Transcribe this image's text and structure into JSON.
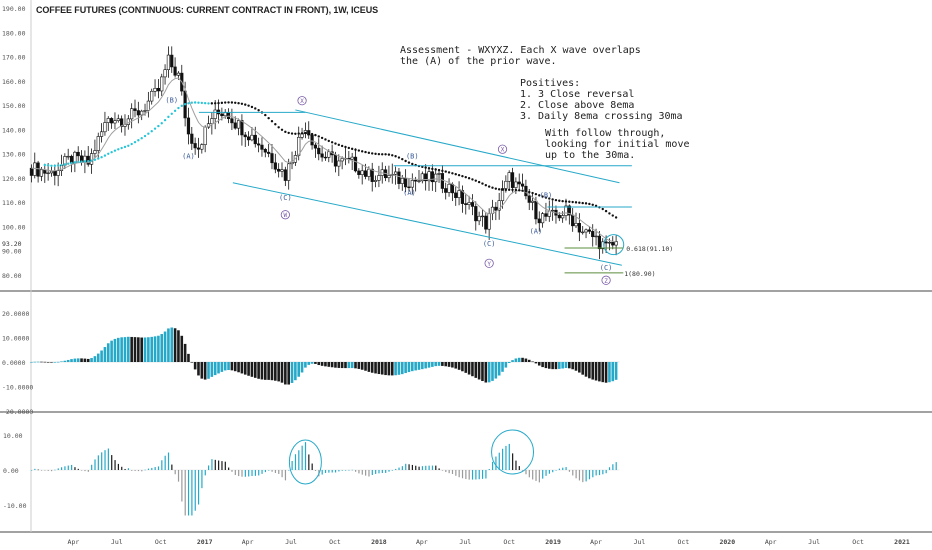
{
  "title": "COFFEE FUTURES (CONTINUOUS: CURRENT CONTRACT IN FRONT), 1W, ICEUS",
  "annotations": {
    "assessment": "Assessment - WXYXZ. Each X wave overlaps\nthe (A) of the prior wave.",
    "positives": "Positives:\n1. 3 Close reversal\n2. Close above 8ema\n3. Daily 8ema crossing 30ma",
    "follow": "With follow through,\nlooking for initial move\nup to the 30ma."
  },
  "colors": {
    "accent": "#26a9c9",
    "black": "#1b1b1b",
    "grey": "#9a9a9a",
    "dots": "#26c6da"
  },
  "chart_data": [
    {
      "type": "candlestick",
      "y_ticks": [
        "190.00",
        "180.00",
        "170.00",
        "160.00",
        "150.00",
        "140.00",
        "130.00",
        "120.00",
        "110.00",
        "100.00",
        "93.20",
        "90.00",
        "80.00"
      ],
      "ylim": [
        75,
        192
      ],
      "last_price": "93.20",
      "x_ticks": [
        "Apr",
        "Jul",
        "Oct",
        "2017",
        "Apr",
        "Jul",
        "Oct",
        "2018",
        "Apr",
        "Jul",
        "Oct",
        "2019",
        "Apr",
        "Jul",
        "Oct",
        "2020",
        "Apr",
        "Jul",
        "Oct",
        "2021"
      ],
      "wave_labels": [
        {
          "text": "(B)",
          "date": "2016-10-24",
          "price": 151
        },
        {
          "text": "(A)",
          "date": "2016-11-28",
          "price": 128
        },
        {
          "text": "(C)",
          "date": "2017-06-19",
          "price": 111
        },
        {
          "text": "W",
          "date": "2017-06-19",
          "price": 104
        },
        {
          "text": "X",
          "date": "2017-07-24",
          "price": 151
        },
        {
          "text": "(B)",
          "date": "2018-03-12",
          "price": 128
        },
        {
          "text": "(A)",
          "date": "2018-03-06",
          "price": 113
        },
        {
          "text": "(C)",
          "date": "2018-08-20",
          "price": 92
        },
        {
          "text": "Y",
          "date": "2018-08-20",
          "price": 84
        },
        {
          "text": "X",
          "date": "2018-09-17",
          "price": 131
        },
        {
          "text": "(B)",
          "date": "2018-12-17",
          "price": 112
        },
        {
          "text": "(A)",
          "date": "2018-11-26",
          "price": 97
        },
        {
          "text": "(C)",
          "date": "2019-04-22",
          "price": 82
        },
        {
          "text": "Z",
          "date": "2019-04-22",
          "price": 77
        }
      ],
      "fib_levels": [
        {
          "label": "0.618(91.10)",
          "price": 91.1
        },
        {
          "label": "1(80.90)",
          "price": 80.9
        }
      ],
      "series_points": [
        {
          "date": "2016-01-04",
          "close": 124
        },
        {
          "date": "2016-02-15",
          "close": 122
        },
        {
          "date": "2016-03-28",
          "close": 128
        },
        {
          "date": "2016-05-02",
          "close": 126
        },
        {
          "date": "2016-06-13",
          "close": 145
        },
        {
          "date": "2016-07-18",
          "close": 144
        },
        {
          "date": "2016-08-22",
          "close": 148
        },
        {
          "date": "2016-09-26",
          "close": 156
        },
        {
          "date": "2016-10-17",
          "close": 168
        },
        {
          "date": "2016-11-07",
          "close": 162
        },
        {
          "date": "2016-11-28",
          "close": 138
        },
        {
          "date": "2016-12-19",
          "close": 133
        },
        {
          "date": "2017-01-16",
          "close": 145
        },
        {
          "date": "2017-02-13",
          "close": 148
        },
        {
          "date": "2017-03-06",
          "close": 143
        },
        {
          "date": "2017-04-10",
          "close": 137
        },
        {
          "date": "2017-05-15",
          "close": 130
        },
        {
          "date": "2017-06-19",
          "close": 121
        },
        {
          "date": "2017-07-10",
          "close": 132
        },
        {
          "date": "2017-07-31",
          "close": 142
        },
        {
          "date": "2017-08-28",
          "close": 130
        },
        {
          "date": "2017-10-02",
          "close": 127
        },
        {
          "date": "2017-11-06",
          "close": 126
        },
        {
          "date": "2017-12-11",
          "close": 121
        },
        {
          "date": "2018-01-15",
          "close": 121
        },
        {
          "date": "2018-02-19",
          "close": 119
        },
        {
          "date": "2018-03-26",
          "close": 119
        },
        {
          "date": "2018-04-30",
          "close": 120
        },
        {
          "date": "2018-06-04",
          "close": 115
        },
        {
          "date": "2018-07-09",
          "close": 108
        },
        {
          "date": "2018-08-13",
          "close": 101
        },
        {
          "date": "2018-09-10",
          "close": 111
        },
        {
          "date": "2018-10-01",
          "close": 120
        },
        {
          "date": "2018-10-29",
          "close": 114
        },
        {
          "date": "2018-12-03",
          "close": 104
        },
        {
          "date": "2018-12-31",
          "close": 104
        },
        {
          "date": "2019-01-28",
          "close": 106
        },
        {
          "date": "2019-03-04",
          "close": 98
        },
        {
          "date": "2019-04-01",
          "close": 95
        },
        {
          "date": "2019-04-22",
          "close": 91
        },
        {
          "date": "2019-05-13",
          "close": 93
        }
      ]
    },
    {
      "type": "bar",
      "y_ticks": [
        "20.0000",
        "10.0000",
        "0.0000",
        "-10.0000",
        "-20.0000"
      ],
      "ylim": [
        -20,
        22
      ]
    },
    {
      "type": "bar",
      "y_ticks": [
        "10.00",
        "0.00",
        "-10.00"
      ],
      "ylim": [
        -14,
        12
      ]
    }
  ]
}
